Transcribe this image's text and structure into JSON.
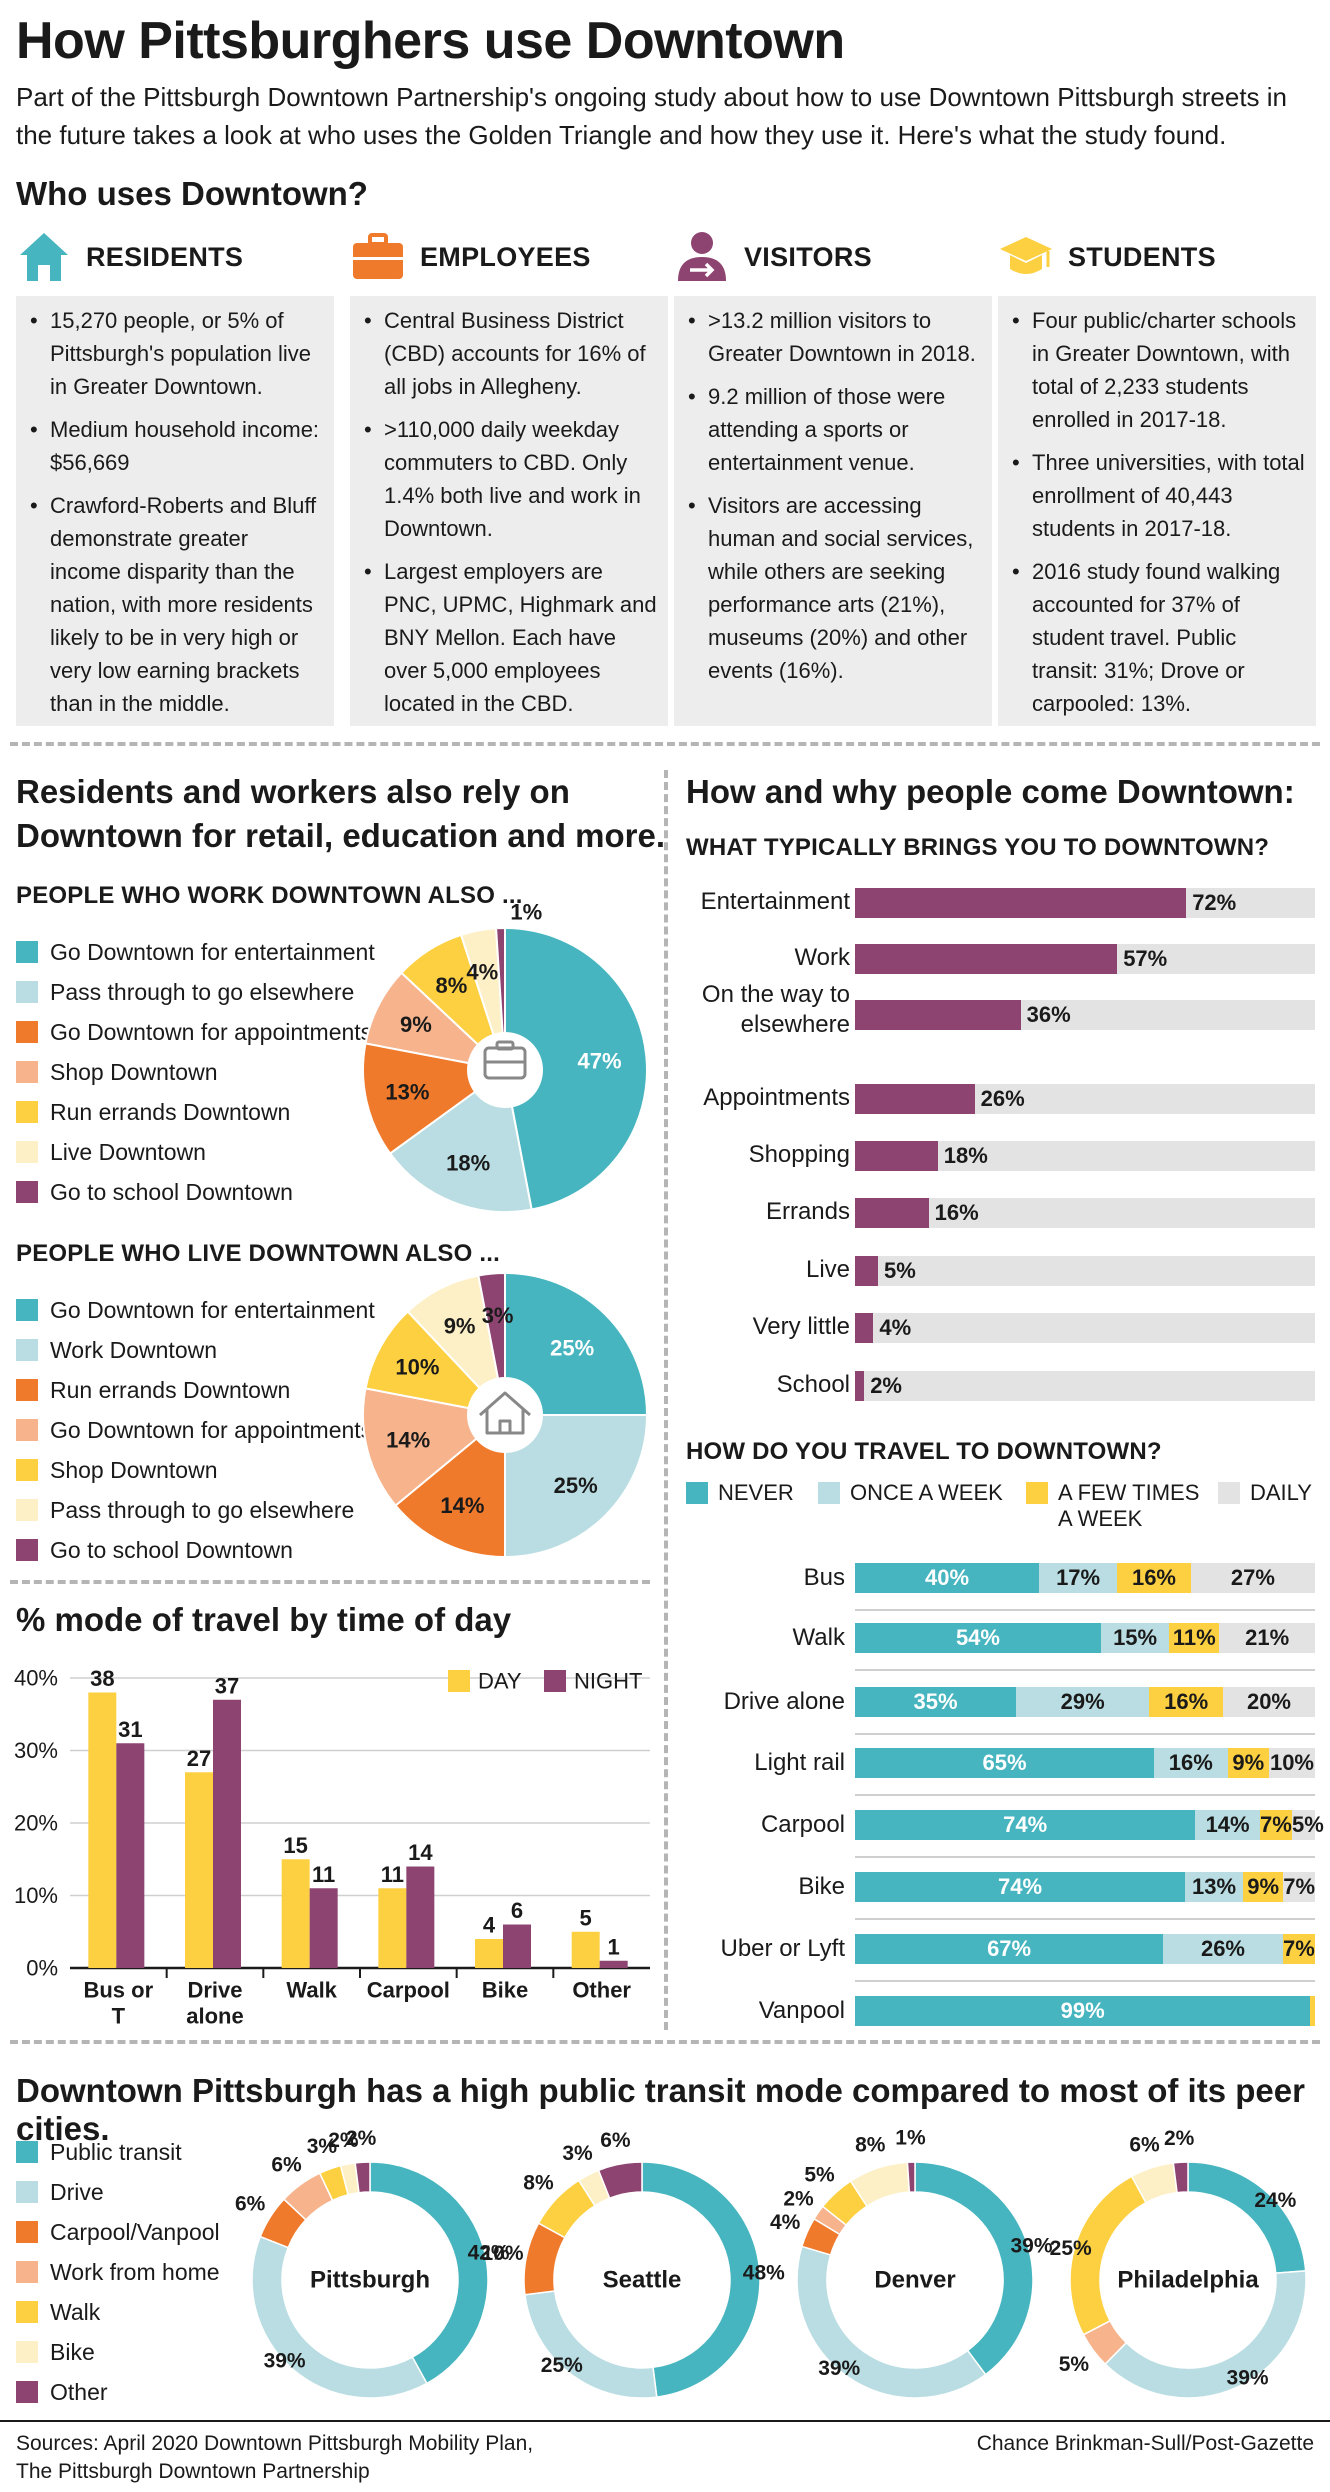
{
  "header": {
    "title": "How Pittsburghers use Downtown",
    "intro": "Part of the Pittsburgh Downtown Partnership's ongoing study about how to use Downtown Pittsburgh streets in the future takes a look at who uses the Golden Triangle and how they use it. Here's what the study found."
  },
  "who": {
    "title": "Who uses Downtown?",
    "columns": [
      {
        "heading": "RESIDENTS",
        "icon": "house-icon",
        "bullets": [
          "15,270 people, or 5% of Pittsburgh's population live in Greater Downtown.",
          "Medium household income: $56,669",
          "Crawford-Roberts and Bluff demonstrate greater income disparity than the nation, with more residents likely to be in very high or very low earning brackets than in the middle."
        ]
      },
      {
        "heading": "EMPLOYEES",
        "icon": "briefcase-icon",
        "bullets": [
          "Central Business District (CBD) accounts for 16% of all jobs in Allegheny.",
          ">110,000 daily weekday commuters to CBD. Only 1.4% both live and work in Downtown.",
          "Largest employers are PNC, UPMC, Highmark and BNY Mellon. Each have over 5,000 employees located in the CBD."
        ]
      },
      {
        "heading": "VISITORS",
        "icon": "visitor-icon",
        "bullets": [
          ">13.2 million visitors to Greater Downtown in 2018.",
          "9.2 million of those were attending a sports or entertainment venue.",
          "Visitors are accessing human and social services, while others are seeking performance arts (21%), museums (20%) and other events (16%)."
        ]
      },
      {
        "heading": "STUDENTS",
        "icon": "graduation-cap-icon",
        "bullets": [
          "Four public/charter schools in Greater Downtown, with total of 2,233 students enrolled in 2017-18.",
          "Three universities, with total enrollment of 40,443 students in 2017-18.",
          "2016 study found walking accounted for 37% of student travel. Public transit: 31%; Drove or carpooled: 13%."
        ]
      }
    ]
  },
  "colors": {
    "teal": "#46b5bf",
    "light_teal": "#b9dde2",
    "orange": "#ef7a2c",
    "peach": "#f6b38c",
    "yellow": "#fdd042",
    "cream": "#fdefc6",
    "purple": "#8e4470",
    "gray": "#e3e3e3"
  },
  "left_section": {
    "title_line1": "Residents and workers also rely on",
    "title_line2": "Downtown for retail, education and more."
  },
  "chart_data": [
    {
      "id": "work",
      "type": "pie",
      "title": "PEOPLE WHO WORK DOWNTOWN ALSO ...",
      "center_icon": "briefcase-icon",
      "labels": [
        "Go Downtown for entertainment",
        "Pass through to go elsewhere",
        "Go Downtown for appointments",
        "Shop Downtown",
        "Run errands Downtown",
        "Live Downtown",
        "Go to school Downtown"
      ],
      "values": [
        47,
        18,
        13,
        9,
        8,
        4,
        1
      ],
      "value_labels": [
        "47%",
        "18%",
        "13%",
        "9%",
        "8%",
        "4%",
        "1%"
      ],
      "colors": [
        "#46b5bf",
        "#b9dde2",
        "#ef7a2c",
        "#f6b38c",
        "#fdd042",
        "#fdefc6",
        "#8e4470"
      ]
    },
    {
      "id": "live",
      "type": "pie",
      "title": "PEOPLE WHO LIVE DOWNTOWN ALSO ...",
      "center_icon": "house-icon",
      "labels": [
        "Go Downtown for entertainment",
        "Work Downtown",
        "Run errands Downtown",
        "Go Downtown for appointments",
        "Shop Downtown",
        "Pass through to go elsewhere",
        "Go to school Downtown"
      ],
      "values": [
        25,
        25,
        14,
        14,
        10,
        9,
        3
      ],
      "value_labels": [
        "25%",
        "25%",
        "14%",
        "14%",
        "10%",
        "9%",
        "3%"
      ],
      "colors": [
        "#46b5bf",
        "#b9dde2",
        "#ef7a2c",
        "#f6b38c",
        "#fdd042",
        "#fdefc6",
        "#8e4470"
      ]
    },
    {
      "id": "mode",
      "type": "bar",
      "title": "% mode of travel by time of day",
      "categories": [
        "Bus or T",
        "Drive alone",
        "Walk",
        "Carpool",
        "Bike",
        "Other"
      ],
      "series": [
        {
          "name": "DAY",
          "values": [
            38,
            27,
            15,
            11,
            4,
            5
          ],
          "color": "#fdd042"
        },
        {
          "name": "NIGHT",
          "values": [
            31,
            37,
            11,
            14,
            6,
            1
          ],
          "color": "#8e4470"
        }
      ],
      "yticks": [
        "0%",
        "10%",
        "20%",
        "30%",
        "40%"
      ],
      "ylim": [
        0,
        40
      ],
      "legend": "top-right",
      "grid": true
    },
    {
      "id": "brings",
      "type": "bar",
      "orientation": "horizontal",
      "title": "WHAT TYPICALLY BRINGS YOU TO DOWNTOWN?",
      "categories": [
        "Entertainment",
        "Work",
        "On the way to elsewhere",
        "Appointments",
        "Shopping",
        "Errands",
        "Live",
        "Very little",
        "School"
      ],
      "values": [
        72,
        57,
        36,
        26,
        18,
        16,
        5,
        4,
        2
      ],
      "value_labels": [
        "72%",
        "57%",
        "36%",
        "26%",
        "18%",
        "16%",
        "5%",
        "4%",
        "2%"
      ],
      "xlim": [
        0,
        100
      ]
    },
    {
      "id": "travel",
      "type": "bar",
      "orientation": "horizontal",
      "stacked": true,
      "title": "HOW DO YOU TRAVEL TO DOWNTOWN?",
      "categories": [
        "Bus",
        "Walk",
        "Drive alone",
        "Light rail",
        "Carpool",
        "Bike",
        "Uber or Lyft",
        "Vanpool"
      ],
      "series": [
        {
          "name": "NEVER",
          "values": [
            40,
            54,
            35,
            65,
            74,
            74,
            67,
            99
          ],
          "color": "#46b5bf",
          "labels": [
            "40%",
            "54%",
            "35%",
            "65%",
            "74%",
            "74%",
            "67%",
            "99%"
          ]
        },
        {
          "name": "ONCE A WEEK",
          "values": [
            17,
            15,
            29,
            16,
            14,
            13,
            26,
            0
          ],
          "color": "#b9dde2",
          "labels": [
            "17%",
            "15%",
            "29%",
            "16%",
            "14%",
            "13%",
            "26%",
            ""
          ]
        },
        {
          "name": "A FEW TIMES A WEEK",
          "values": [
            16,
            11,
            16,
            9,
            7,
            9,
            7,
            1
          ],
          "color": "#fdd042",
          "labels": [
            "16%",
            "11%",
            "16%",
            "9%",
            "7%",
            "9%",
            "7%",
            ""
          ]
        },
        {
          "name": "DAILY",
          "values": [
            27,
            21,
            20,
            10,
            5,
            7,
            0,
            0
          ],
          "color": "#e3e3e3",
          "labels": [
            "27%",
            "21%",
            "20%",
            "10%",
            "5%",
            "7%",
            "",
            ""
          ]
        }
      ],
      "legend": "top",
      "legend_line1": [
        "NEVER",
        "ONCE A WEEK",
        "A FEW TIMES",
        "DAILY"
      ],
      "legend_line2": "A WEEK"
    },
    {
      "id": "cities",
      "type": "pie",
      "variant": "donut",
      "title": "Downtown Pittsburgh has a high public transit mode compared to most of its peer cities.",
      "legend_labels": [
        "Public transit",
        "Drive",
        "Carpool/Vanpool",
        "Work from home",
        "Walk",
        "Bike",
        "Other"
      ],
      "colors": [
        "#46b5bf",
        "#b9dde2",
        "#ef7a2c",
        "#f6b38c",
        "#fdd042",
        "#fdefc6",
        "#8e4470"
      ],
      "cities": [
        {
          "name": "Pittsburgh",
          "values": [
            42,
            39,
            6,
            6,
            3,
            2,
            2
          ],
          "labels": [
            "42%",
            "39%",
            "6%",
            "6%",
            "3%",
            "2%",
            "2%"
          ]
        },
        {
          "name": "Seattle",
          "values": [
            48,
            25,
            10,
            0,
            8,
            3,
            6
          ],
          "labels": [
            "48%",
            "25%",
            "10%",
            "",
            "8%",
            "3%",
            "6%"
          ]
        },
        {
          "name": "Denver",
          "values": [
            39,
            39,
            4,
            2,
            5,
            8,
            1
          ],
          "labels": [
            "39%",
            "39%",
            "4%",
            "2%",
            "5%",
            "8%",
            "1%"
          ]
        },
        {
          "name": "Philadelphia",
          "values": [
            24,
            39,
            0,
            5,
            25,
            6,
            2
          ],
          "labels": [
            "24%",
            "39%",
            "",
            "5%",
            "25%",
            "6%",
            "2%"
          ]
        }
      ]
    }
  ],
  "right_section": {
    "title": "How and why people come Downtown:"
  },
  "footer": {
    "sources_line1": "Sources: April 2020 Downtown Pittsburgh Mobility Plan,",
    "sources_line2": "The Pittsburgh Downtown Partnership",
    "credit": "Chance Brinkman-Sull/Post-Gazette"
  }
}
